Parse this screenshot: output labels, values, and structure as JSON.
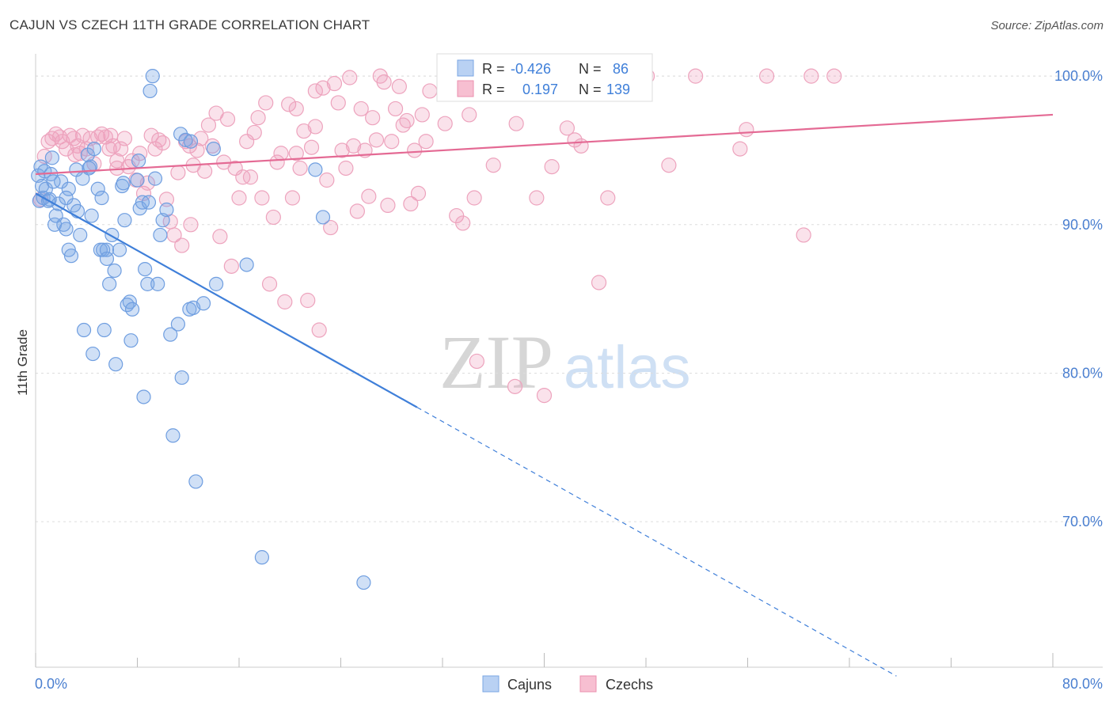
{
  "title": "CAJUN VS CZECH 11TH GRADE CORRELATION CHART",
  "source": "Source: ZipAtlas.com",
  "watermark": {
    "zip": "ZIP",
    "atlas": "atlas"
  },
  "colors": {
    "cajun": "#3f7fd9",
    "cajun_fill": "rgba(120,165,230,0.35)",
    "czech": "#e46a94",
    "czech_fill": "rgba(240,160,190,0.30)",
    "tick_text": "#4a7fd0",
    "grid": "#dddddd"
  },
  "legend_top": {
    "cajun": {
      "r_label": "R =",
      "r_value": "-0.426",
      "n_label": "N =",
      "n_value": "86"
    },
    "czech": {
      "r_label": "R =",
      "r_value": "0.197",
      "n_label": "N =",
      "n_value": "139"
    }
  },
  "chart_data": {
    "type": "scatter",
    "title": "CAJUN VS CZECH 11TH GRADE CORRELATION CHART",
    "xlabel": "",
    "ylabel": "11th Grade",
    "xlim": [
      0,
      80
    ],
    "ylim": [
      60.2,
      101.5
    ],
    "x_tick_labels": [
      "0.0%",
      "80.0%"
    ],
    "y_ticks": [
      70,
      80,
      90,
      100
    ],
    "y_tick_labels": [
      "70.0%",
      "80.0%",
      "90.0%",
      "100.0%"
    ],
    "grid": true,
    "legend_position": "bottom-center",
    "series": [
      {
        "name": "Cajuns",
        "trend": {
          "x0": 0,
          "y0": 92.1,
          "x1": 30,
          "y1": 77.7,
          "dashed_to_x": 67.7
        },
        "points": [
          [
            0.2,
            93.3
          ],
          [
            0.3,
            91.6
          ],
          [
            0.4,
            93.9
          ],
          [
            0.5,
            92.6
          ],
          [
            0.6,
            91.8
          ],
          [
            0.7,
            93.6
          ],
          [
            0.8,
            92.4
          ],
          [
            1.0,
            91.6
          ],
          [
            1.2,
            93.4
          ],
          [
            1.3,
            94.5
          ],
          [
            1.5,
            90.0
          ],
          [
            1.6,
            90.6
          ],
          [
            1.8,
            91.4
          ],
          [
            2.0,
            92.9
          ],
          [
            2.2,
            90.0
          ],
          [
            2.4,
            89.7
          ],
          [
            2.6,
            88.3
          ],
          [
            2.8,
            87.9
          ],
          [
            2.6,
            92.4
          ],
          [
            3.0,
            91.3
          ],
          [
            3.3,
            90.9
          ],
          [
            3.5,
            89.3
          ],
          [
            3.7,
            93.1
          ],
          [
            3.8,
            82.9
          ],
          [
            4.1,
            94.7
          ],
          [
            4.3,
            93.9
          ],
          [
            4.4,
            90.6
          ],
          [
            4.5,
            81.3
          ],
          [
            4.6,
            95.1
          ],
          [
            4.9,
            92.4
          ],
          [
            5.1,
            88.3
          ],
          [
            5.3,
            88.3
          ],
          [
            5.2,
            91.8
          ],
          [
            5.4,
            82.9
          ],
          [
            5.6,
            88.3
          ],
          [
            5.6,
            87.7
          ],
          [
            5.8,
            86.0
          ],
          [
            6.0,
            89.3
          ],
          [
            6.2,
            86.9
          ],
          [
            6.3,
            80.6
          ],
          [
            6.6,
            88.3
          ],
          [
            6.8,
            92.6
          ],
          [
            7.0,
            90.3
          ],
          [
            7.2,
            84.6
          ],
          [
            7.4,
            84.8
          ],
          [
            7.5,
            82.2
          ],
          [
            7.6,
            84.3
          ],
          [
            8.0,
            93.0
          ],
          [
            8.1,
            94.3
          ],
          [
            8.2,
            91.1
          ],
          [
            8.4,
            91.5
          ],
          [
            8.5,
            78.4
          ],
          [
            8.6,
            87.0
          ],
          [
            8.8,
            86.0
          ],
          [
            8.9,
            91.5
          ],
          [
            9.2,
            100.0
          ],
          [
            9.4,
            93.1
          ],
          [
            9.6,
            86.0
          ],
          [
            9.8,
            89.3
          ],
          [
            10.0,
            90.3
          ],
          [
            10.3,
            91.0
          ],
          [
            10.6,
            82.6
          ],
          [
            10.8,
            75.8
          ],
          [
            11.2,
            83.3
          ],
          [
            11.4,
            96.1
          ],
          [
            11.5,
            79.7
          ],
          [
            11.8,
            95.7
          ],
          [
            12.1,
            84.3
          ],
          [
            12.4,
            84.4
          ],
          [
            12.6,
            72.7
          ],
          [
            13.2,
            84.7
          ],
          [
            14.0,
            95.1
          ],
          [
            14.2,
            86.0
          ],
          [
            16.6,
            87.3
          ],
          [
            17.8,
            67.6
          ],
          [
            22.0,
            93.7
          ],
          [
            22.6,
            90.5
          ],
          [
            25.8,
            65.9
          ],
          [
            1.4,
            92.9
          ],
          [
            2.4,
            91.8
          ],
          [
            6.9,
            92.8
          ],
          [
            9.0,
            99.0
          ],
          [
            4.2,
            93.8
          ],
          [
            3.2,
            93.7
          ],
          [
            1.1,
            91.7
          ],
          [
            12.2,
            95.6
          ]
        ]
      },
      {
        "name": "Czechs",
        "trend": {
          "x0": 0,
          "y0": 93.4,
          "x1": 80,
          "y1": 97.4
        },
        "points": [
          [
            0.4,
            91.7
          ],
          [
            0.7,
            94.6
          ],
          [
            1.0,
            95.6
          ],
          [
            1.3,
            95.8
          ],
          [
            1.6,
            96.1
          ],
          [
            1.9,
            95.9
          ],
          [
            2.1,
            95.6
          ],
          [
            2.4,
            95.1
          ],
          [
            2.7,
            96.0
          ],
          [
            3.0,
            95.8
          ],
          [
            3.3,
            95.3
          ],
          [
            3.5,
            94.8
          ],
          [
            3.7,
            96.0
          ],
          [
            4.0,
            95.1
          ],
          [
            4.3,
            95.8
          ],
          [
            4.6,
            94.1
          ],
          [
            4.9,
            95.9
          ],
          [
            5.2,
            96.1
          ],
          [
            5.5,
            95.9
          ],
          [
            5.8,
            95.1
          ],
          [
            6.1,
            95.3
          ],
          [
            6.4,
            94.3
          ],
          [
            6.7,
            95.1
          ],
          [
            7.0,
            95.8
          ],
          [
            7.3,
            93.9
          ],
          [
            7.6,
            94.3
          ],
          [
            7.9,
            93.0
          ],
          [
            8.2,
            94.8
          ],
          [
            8.5,
            92.1
          ],
          [
            8.8,
            92.8
          ],
          [
            9.1,
            96.0
          ],
          [
            9.4,
            95.1
          ],
          [
            9.7,
            95.7
          ],
          [
            10.0,
            95.5
          ],
          [
            10.3,
            91.7
          ],
          [
            10.6,
            90.2
          ],
          [
            10.9,
            89.3
          ],
          [
            11.2,
            93.5
          ],
          [
            11.5,
            88.6
          ],
          [
            11.8,
            95.6
          ],
          [
            12.1,
            95.3
          ],
          [
            12.4,
            94.0
          ],
          [
            12.7,
            95.0
          ],
          [
            13.0,
            95.8
          ],
          [
            13.3,
            93.6
          ],
          [
            13.6,
            96.7
          ],
          [
            13.9,
            95.3
          ],
          [
            14.2,
            97.5
          ],
          [
            14.5,
            89.2
          ],
          [
            14.8,
            94.2
          ],
          [
            15.1,
            97.1
          ],
          [
            15.4,
            87.2
          ],
          [
            15.7,
            93.8
          ],
          [
            16.0,
            91.8
          ],
          [
            16.3,
            93.2
          ],
          [
            16.6,
            95.6
          ],
          [
            16.9,
            93.2
          ],
          [
            17.2,
            96.2
          ],
          [
            17.5,
            97.2
          ],
          [
            17.8,
            91.8
          ],
          [
            18.1,
            98.2
          ],
          [
            18.4,
            86.0
          ],
          [
            18.7,
            90.5
          ],
          [
            19.0,
            94.2
          ],
          [
            19.3,
            94.8
          ],
          [
            19.6,
            84.8
          ],
          [
            19.9,
            98.1
          ],
          [
            20.2,
            91.8
          ],
          [
            20.5,
            94.8
          ],
          [
            20.8,
            93.8
          ],
          [
            21.1,
            96.3
          ],
          [
            21.4,
            84.9
          ],
          [
            21.7,
            95.2
          ],
          [
            22.0,
            96.6
          ],
          [
            22.3,
            82.9
          ],
          [
            22.6,
            99.2
          ],
          [
            22.9,
            93.0
          ],
          [
            23.2,
            89.8
          ],
          [
            23.5,
            99.5
          ],
          [
            23.8,
            98.2
          ],
          [
            24.1,
            95.0
          ],
          [
            24.4,
            93.8
          ],
          [
            24.7,
            99.9
          ],
          [
            25.0,
            95.3
          ],
          [
            25.3,
            90.9
          ],
          [
            25.6,
            97.8
          ],
          [
            25.9,
            95.0
          ],
          [
            26.2,
            91.9
          ],
          [
            26.5,
            97.2
          ],
          [
            26.8,
            95.7
          ],
          [
            27.1,
            100.0
          ],
          [
            27.4,
            99.6
          ],
          [
            27.7,
            91.3
          ],
          [
            28.0,
            95.6
          ],
          [
            28.3,
            97.8
          ],
          [
            28.6,
            99.3
          ],
          [
            28.9,
            96.7
          ],
          [
            29.2,
            97.0
          ],
          [
            29.5,
            91.4
          ],
          [
            29.8,
            95.0
          ],
          [
            30.1,
            92.1
          ],
          [
            30.4,
            97.4
          ],
          [
            30.7,
            95.6
          ],
          [
            31.0,
            99.0
          ],
          [
            32.2,
            96.8
          ],
          [
            33.1,
            90.6
          ],
          [
            33.6,
            90.1
          ],
          [
            34.1,
            97.4
          ],
          [
            34.5,
            91.8
          ],
          [
            35.2,
            98.8
          ],
          [
            36.0,
            94.0
          ],
          [
            37.8,
            96.8
          ],
          [
            39.0,
            99.2
          ],
          [
            39.4,
            91.8
          ],
          [
            40.6,
            93.9
          ],
          [
            41.8,
            96.5
          ],
          [
            42.4,
            95.7
          ],
          [
            42.9,
            95.3
          ],
          [
            44.3,
            86.1
          ],
          [
            45.0,
            91.8
          ],
          [
            46.1,
            100.0
          ],
          [
            49.8,
            94.0
          ],
          [
            51.9,
            100.0
          ],
          [
            55.4,
            95.1
          ],
          [
            55.9,
            96.4
          ],
          [
            57.5,
            100.0
          ],
          [
            60.4,
            89.3
          ],
          [
            61.0,
            100.0
          ],
          [
            62.8,
            100.0
          ],
          [
            37.7,
            79.1
          ],
          [
            40.0,
            78.5
          ],
          [
            34.7,
            80.8
          ],
          [
            22.0,
            99.0
          ],
          [
            20.5,
            97.8
          ],
          [
            12.2,
            90.0
          ],
          [
            3.1,
            94.7
          ],
          [
            5.9,
            96.0
          ],
          [
            6.4,
            93.8
          ],
          [
            48.1,
            100.0
          ]
        ]
      }
    ]
  },
  "bottom_legend": {
    "cajun": "Cajuns",
    "czech": "Czechs"
  }
}
